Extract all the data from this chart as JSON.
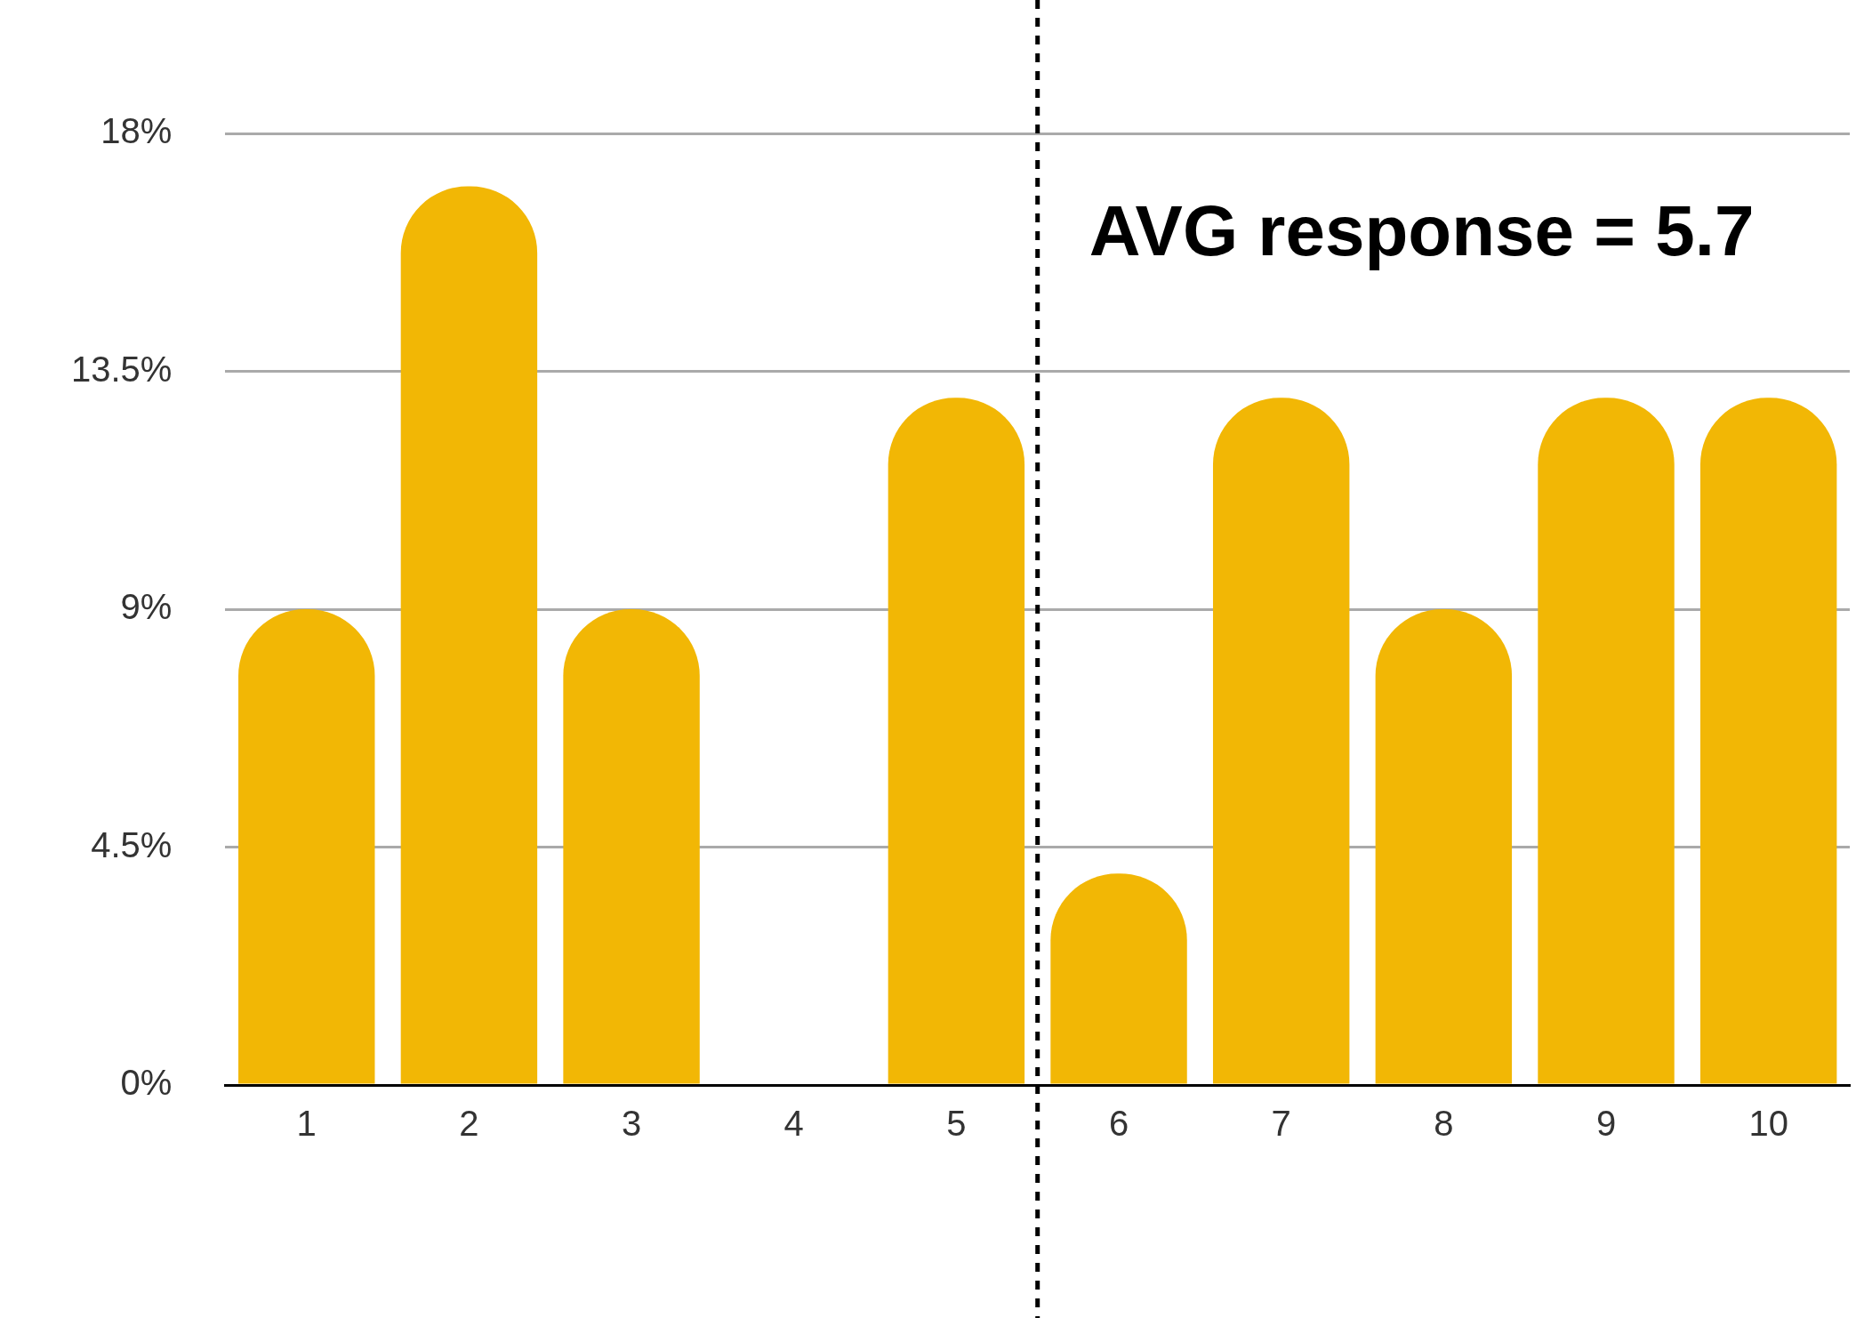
{
  "chart_data": {
    "type": "bar",
    "x": [
      1,
      2,
      3,
      4,
      5,
      6,
      7,
      8,
      9,
      10
    ],
    "values": [
      9,
      17,
      9,
      0,
      13,
      4,
      13,
      9,
      13,
      13
    ],
    "color": "#f2b705",
    "xlim": [
      0.5,
      10.5
    ],
    "xticks": [
      1,
      2,
      3,
      4,
      5,
      6,
      7,
      8,
      9,
      10
    ],
    "ylim": [
      0,
      18
    ],
    "yticks": [
      {
        "value": 0,
        "label": "0%"
      },
      {
        "value": 4.5,
        "label": "4.5%"
      },
      {
        "value": 9,
        "label": "9%"
      },
      {
        "value": 13.5,
        "label": "13.5%"
      },
      {
        "value": 18,
        "label": "18%"
      }
    ],
    "grid": "y",
    "legend": false,
    "annotations": [
      "AVG response = 5.7"
    ],
    "ref_lines": [
      {
        "axis": "x",
        "value": 5.5,
        "color": "#000000",
        "line_style": "dotted"
      }
    ]
  }
}
